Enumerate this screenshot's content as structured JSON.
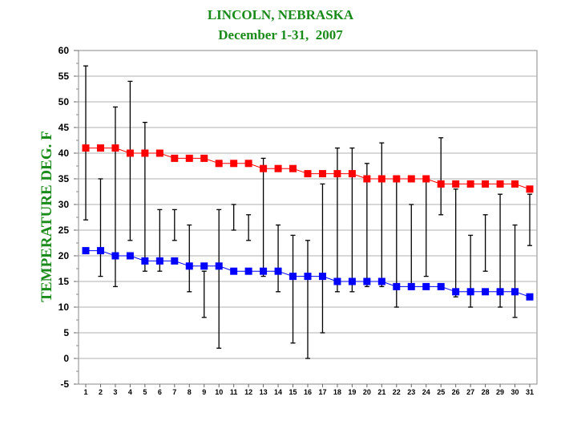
{
  "chart_data": {
    "type": "line",
    "title": "LINCOLN, NEBRASKA",
    "subtitle": "December 1-31,  2007",
    "ylabel": "TEMPERATURE DEG. F",
    "xlabel": "",
    "ylim": [
      -5,
      60
    ],
    "yticks": [
      -5,
      0,
      5,
      10,
      15,
      20,
      25,
      30,
      35,
      40,
      45,
      50,
      55,
      60
    ],
    "grid": true,
    "legend": "none",
    "categories": [
      "1",
      "2",
      "3",
      "4",
      "5",
      "6",
      "7",
      "8",
      "9",
      "10",
      "11",
      "12",
      "13",
      "14",
      "15",
      "16",
      "17",
      "18",
      "19",
      "20",
      "21",
      "22",
      "23",
      "24",
      "25",
      "26",
      "27",
      "28",
      "29",
      "30",
      "31"
    ],
    "series": [
      {
        "color": "#ff0000",
        "marker": "square",
        "values": [
          41,
          41,
          41,
          40,
          40,
          40,
          39,
          39,
          39,
          38,
          38,
          38,
          37,
          37,
          37,
          36,
          36,
          36,
          36,
          35,
          35,
          35,
          35,
          35,
          34,
          34,
          34,
          34,
          34,
          34,
          33
        ]
      },
      {
        "color": "#0000ff",
        "marker": "square",
        "values": [
          21,
          21,
          20,
          20,
          19,
          19,
          19,
          18,
          18,
          18,
          17,
          17,
          17,
          17,
          16,
          16,
          16,
          15,
          15,
          15,
          15,
          14,
          14,
          14,
          14,
          13,
          13,
          13,
          13,
          13,
          12
        ]
      }
    ],
    "ranges": {
      "color": "#000000",
      "high": [
        57,
        35,
        49,
        54,
        46,
        29,
        29,
        26,
        17,
        29,
        30,
        28,
        39,
        26,
        24,
        23,
        34,
        41,
        41,
        38,
        42,
        35,
        30,
        35,
        43,
        33,
        24,
        28,
        32,
        26,
        32
      ],
      "low": [
        27,
        16,
        14,
        23,
        17,
        17,
        23,
        13,
        8,
        2,
        25,
        23,
        16,
        13,
        3,
        0,
        5,
        13,
        13,
        14,
        14,
        10,
        14,
        16,
        28,
        12,
        10,
        17,
        10,
        8,
        22
      ]
    }
  }
}
